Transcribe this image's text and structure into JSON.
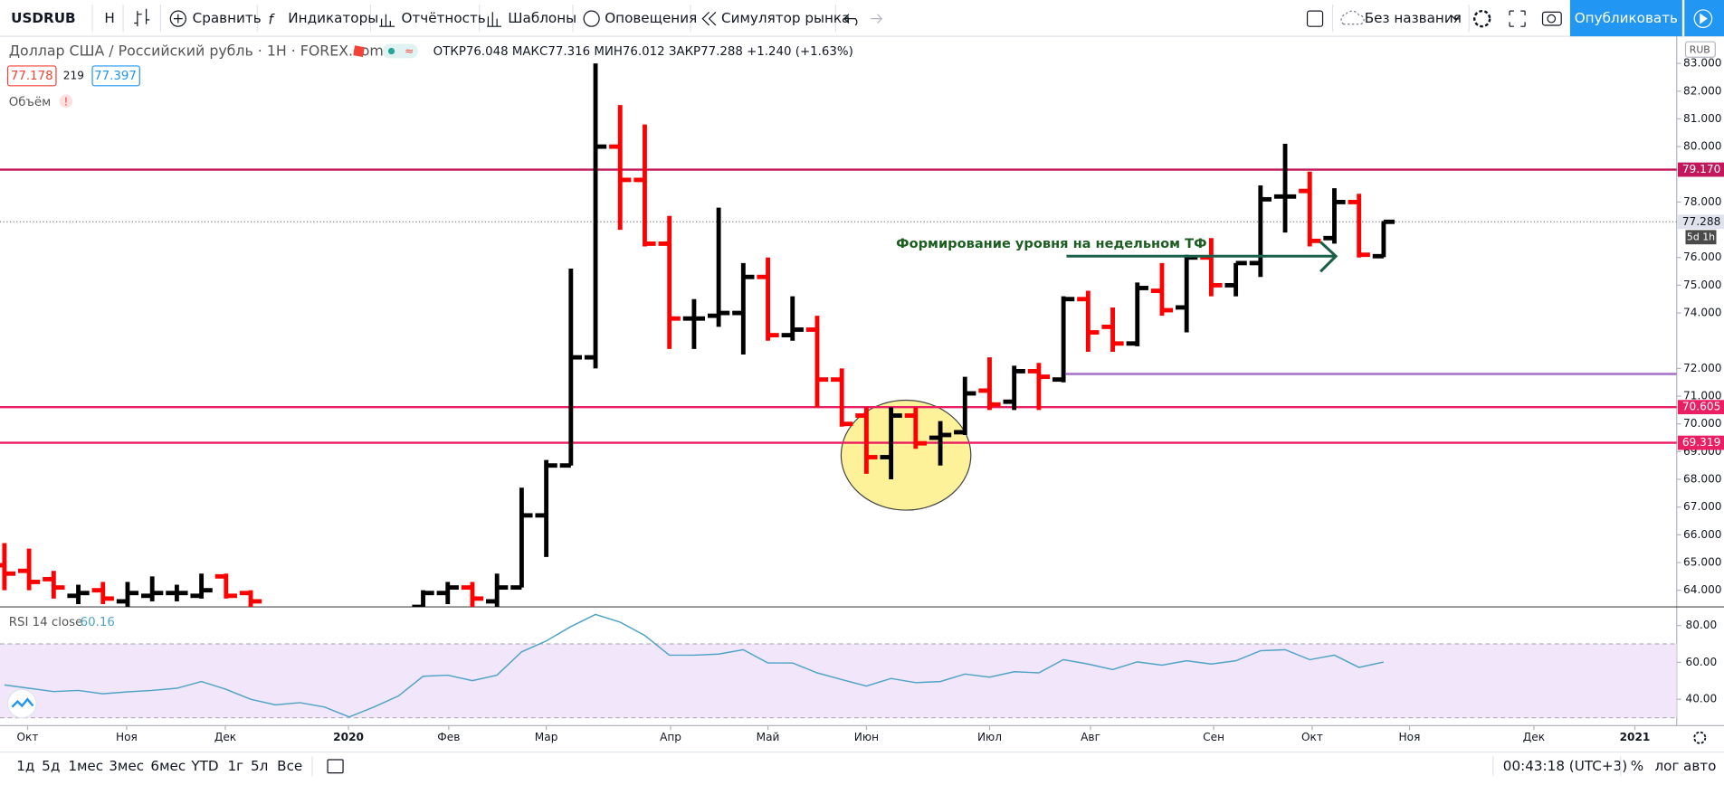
{
  "toolbar": {
    "symbol": "USDRUB",
    "interval": "Н",
    "compare": "Сравнить",
    "indicators": "Индикаторы",
    "financials": "Отчётность",
    "templates": "Шаблоны",
    "alerts": "Оповещения",
    "replay": "Симулятор рынка",
    "layout": "Без названия",
    "publish": "Опубликовать"
  },
  "legend": {
    "title": "Доллар США / Российский рубль · 1Н · FOREX.com",
    "open_label": "ОТКР",
    "open": 76.048,
    "high_label": "МАКС",
    "high": 77.316,
    "low_label": "МИН",
    "low": 76.012,
    "close_label": "ЗАКР",
    "close": 77.288,
    "change": "+1.240 (+1.63%)",
    "bid": 77.178,
    "spread": 219,
    "ask": 77.397,
    "volume": "Объём",
    "warning": "!"
  },
  "bottom": {
    "ranges": [
      "1д",
      "5д",
      "1мес",
      "3мес",
      "6мес",
      "YTD",
      "1г",
      "5л",
      "Все"
    ],
    "clock": "00:43:18 (UTC+3)",
    "percent": "%",
    "log": "лог",
    "auto": "авто"
  },
  "chart_data": [
    {
      "type": "ohlc",
      "currency": "RUB",
      "up_color": "#000000",
      "down_color": "#ff0000",
      "x": [
        0,
        1,
        2,
        3,
        4,
        5,
        6,
        7,
        8,
        9,
        10,
        17,
        18,
        19,
        20,
        21,
        22,
        23,
        24,
        25,
        26,
        27,
        28,
        29,
        30,
        31,
        32,
        33,
        34,
        35,
        36,
        37,
        38,
        39,
        40,
        41,
        42,
        43,
        44,
        45,
        46,
        47,
        48,
        49,
        50,
        51,
        52,
        53,
        54,
        55,
        56
      ],
      "open": [
        64.9,
        64.7,
        64.4,
        63.8,
        64.0,
        63.6,
        63.8,
        63.9,
        63.8,
        64.5,
        63.9,
        63.4,
        63.9,
        64.1,
        63.6,
        64.1,
        66.7,
        68.5,
        72.4,
        80.0,
        78.8,
        76.5,
        73.8,
        73.9,
        74.0,
        75.3,
        73.2,
        73.4,
        71.6,
        70.3,
        68.8,
        70.3,
        69.5,
        69.7,
        71.2,
        70.8,
        71.9,
        71.6,
        74.5,
        73.5,
        72.9,
        74.8,
        74.2,
        76.0,
        75.0,
        75.8,
        78.2,
        78.4,
        76.7,
        78.0,
        76.048
      ],
      "high": [
        65.7,
        65.5,
        64.7,
        64.2,
        64.3,
        64.3,
        64.5,
        64.2,
        64.6,
        64.6,
        64.0,
        64.0,
        64.3,
        64.3,
        64.6,
        67.7,
        68.7,
        75.6,
        83.0,
        81.5,
        80.8,
        77.5,
        74.5,
        77.8,
        75.8,
        76.0,
        74.6,
        73.9,
        72.0,
        70.6,
        70.6,
        70.6,
        70.1,
        71.7,
        72.4,
        72.1,
        72.2,
        74.6,
        74.8,
        74.2,
        75.1,
        75.8,
        76.1,
        76.7,
        75.8,
        78.6,
        80.1,
        79.1,
        78.5,
        78.3,
        77.316
      ],
      "low": [
        64.0,
        64.0,
        63.7,
        63.5,
        63.5,
        63.4,
        63.6,
        63.6,
        63.7,
        63.7,
        63.4,
        63.0,
        63.5,
        63.3,
        63.2,
        64.1,
        65.2,
        68.5,
        72.0,
        77.0,
        76.4,
        72.7,
        72.7,
        73.5,
        72.5,
        73.0,
        73.0,
        70.6,
        69.9,
        68.2,
        68.0,
        69.1,
        68.5,
        69.6,
        70.5,
        70.5,
        70.5,
        71.5,
        72.6,
        72.6,
        72.8,
        73.9,
        73.3,
        74.6,
        74.6,
        75.3,
        76.9,
        76.4,
        76.5,
        76.0,
        76.012
      ],
      "close": [
        64.6,
        64.3,
        64.1,
        63.9,
        63.7,
        63.9,
        63.9,
        63.9,
        64.0,
        63.8,
        63.6,
        63.9,
        64.1,
        63.7,
        64.1,
        66.7,
        68.5,
        72.4,
        80.0,
        78.8,
        76.5,
        73.8,
        73.8,
        74.0,
        75.3,
        73.2,
        73.4,
        71.6,
        70.0,
        68.8,
        70.3,
        69.3,
        69.6,
        71.1,
        70.7,
        71.9,
        71.7,
        74.5,
        73.3,
        72.9,
        74.9,
        74.1,
        76.0,
        75.0,
        75.8,
        78.1,
        78.2,
        76.6,
        78.0,
        76.1,
        77.288
      ],
      "xlim": [
        -0.18,
        67.9
      ],
      "xticks": [
        {
          "value": 0.94,
          "label": "Окт"
        },
        {
          "value": 4.96,
          "label": "Ноя"
        },
        {
          "value": 8.97,
          "label": "Дек"
        },
        {
          "value": 13.97,
          "label": "2020"
        },
        {
          "value": 18.04,
          "label": "Фев"
        },
        {
          "value": 22.0,
          "label": "Мар"
        },
        {
          "value": 27.05,
          "label": "Апр"
        },
        {
          "value": 31.0,
          "label": "Май"
        },
        {
          "value": 35.0,
          "label": "Июн"
        },
        {
          "value": 40.0,
          "label": "Июл"
        },
        {
          "value": 44.1,
          "label": "Авг"
        },
        {
          "value": 49.1,
          "label": "Сен"
        },
        {
          "value": 53.1,
          "label": "Окт"
        },
        {
          "value": 57.05,
          "label": "Ноя"
        },
        {
          "value": 62.1,
          "label": "Дек"
        },
        {
          "value": 66.2,
          "label": "2021"
        }
      ],
      "ylim": [
        63.4,
        83.9
      ],
      "yticks": [
        {
          "value": 64,
          "label": "64.000"
        },
        {
          "value": 65,
          "label": "65.000"
        },
        {
          "value": 66,
          "label": "66.000"
        },
        {
          "value": 67,
          "label": "67.000"
        },
        {
          "value": 68,
          "label": "68.000"
        },
        {
          "value": 69,
          "label": "69.000"
        },
        {
          "value": 70,
          "label": "70.000"
        },
        {
          "value": 71,
          "label": "71.000"
        },
        {
          "value": 72,
          "label": "72.000"
        },
        {
          "value": 74,
          "label": "74.000"
        },
        {
          "value": 75,
          "label": "75.000"
        },
        {
          "value": 76,
          "label": "76.000"
        },
        {
          "value": 78,
          "label": "78.000"
        },
        {
          "value": 80,
          "label": "80.000"
        },
        {
          "value": 81,
          "label": "81.000"
        },
        {
          "value": 82,
          "label": "82.000"
        },
        {
          "value": 83,
          "label": "83.000"
        }
      ],
      "levels": [
        {
          "value": 79.17,
          "label": "79.170",
          "color": "#c2185b"
        },
        {
          "value": 70.605,
          "label": "70.605",
          "color": "#e91e63"
        },
        {
          "value": 69.319,
          "label": "69.319",
          "color": "#e91e63"
        }
      ],
      "segment": {
        "value": 71.8,
        "x_start": 43.1,
        "color": "#a66fc9"
      },
      "last_price": 77.288,
      "countdown": "5d 1h",
      "annotation": "Формирование уровня на недельном ТФ"
    },
    {
      "type": "line",
      "title": "RSI 14 close",
      "color": "#4fa3c7",
      "band": [
        30,
        70
      ],
      "band_color": "#f2e6fb",
      "x": [
        0,
        1,
        2,
        3,
        4,
        5,
        6,
        7,
        8,
        9,
        10,
        11,
        12,
        13,
        14,
        15,
        16,
        17,
        18,
        19,
        20,
        21,
        22,
        23,
        24,
        25,
        26,
        27,
        28,
        29,
        30,
        31,
        32,
        33,
        34,
        35,
        36,
        37,
        38,
        39,
        40,
        41,
        42,
        43,
        44,
        45,
        46,
        47,
        48,
        49,
        50,
        51,
        52,
        53,
        54,
        55,
        56
      ],
      "values": [
        47.8,
        46,
        44.2,
        44.8,
        43,
        44,
        44.8,
        46,
        49.6,
        45.4,
        40,
        37,
        38.2,
        35.8,
        30.4,
        35.8,
        41.8,
        52.5,
        53.1,
        50.1,
        53.1,
        65.7,
        71.6,
        79.4,
        86,
        81.8,
        74.6,
        63.9,
        63.9,
        64.5,
        66.9,
        59.7,
        59.7,
        54.3,
        50.7,
        47.2,
        51.3,
        49,
        49.6,
        53.7,
        52,
        54.9,
        54.3,
        61.5,
        59.1,
        56.1,
        60.3,
        58.5,
        60.9,
        59.1,
        60.9,
        66.3,
        66.9,
        61.5,
        63.9,
        57.3,
        60.16
      ],
      "xlim": [
        -0.18,
        67.9
      ],
      "ylim": [
        27.5,
        90.1
      ],
      "yticks": [
        {
          "value": 80,
          "label": "80.00"
        },
        {
          "value": 60,
          "label": "60.00"
        },
        {
          "value": 40,
          "label": "40.00"
        }
      ]
    }
  ]
}
